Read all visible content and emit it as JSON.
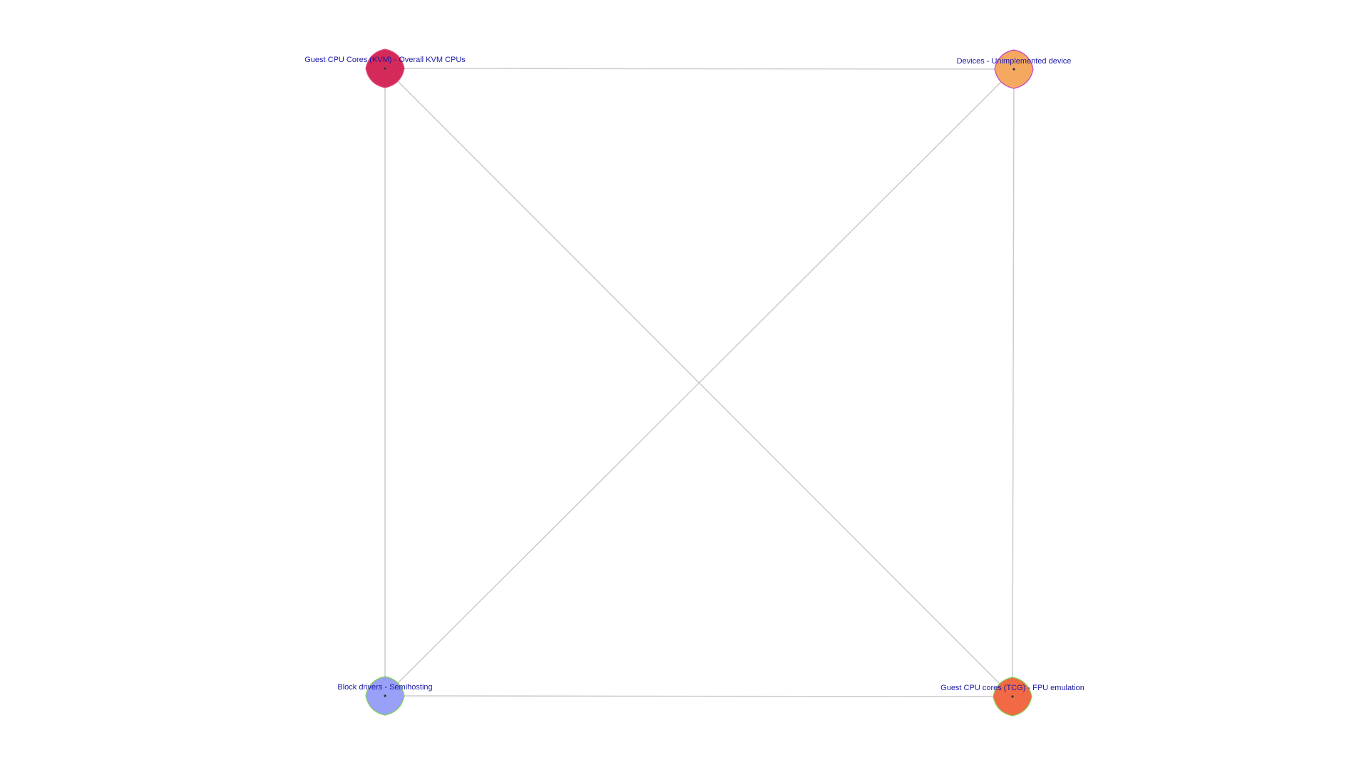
{
  "graph": {
    "label_color": "#1a1aa8",
    "edge_color": "#c8c8c8",
    "nodes": [
      {
        "id": "kvm",
        "label": "Guest CPU Cores (KVM) - Overall KVM CPUs",
        "fill": "#d42a5a",
        "stroke": "#e05080"
      },
      {
        "id": "devices",
        "label": "Devices - Unimplemented device",
        "fill": "#f5a860",
        "stroke": "#c040c8"
      },
      {
        "id": "block",
        "label": "Block drivers - Semihosting",
        "fill": "#98a0f8",
        "stroke": "#80d050"
      },
      {
        "id": "tcg",
        "label": "Guest CPU cores (TCG) - FPU emulation",
        "fill": "#f26a45",
        "stroke": "#80d050"
      }
    ],
    "edges": [
      {
        "source": "kvm",
        "target": "devices"
      },
      {
        "source": "kvm",
        "target": "block"
      },
      {
        "source": "kvm",
        "target": "tcg"
      },
      {
        "source": "devices",
        "target": "block"
      },
      {
        "source": "devices",
        "target": "tcg"
      },
      {
        "source": "block",
        "target": "tcg"
      }
    ]
  }
}
